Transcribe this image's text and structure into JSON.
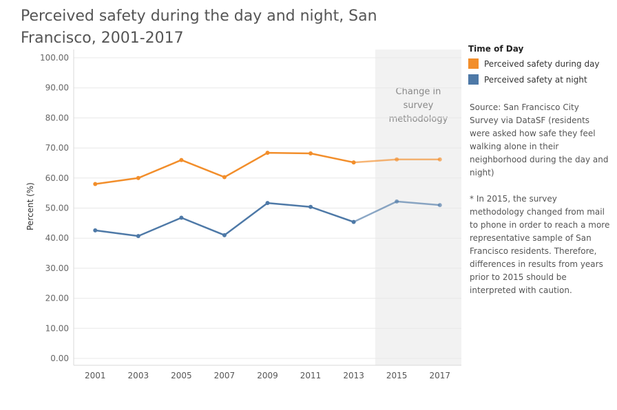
{
  "title": "Perceived safety during the day and night, San Francisco, 2001-2017",
  "legend": {
    "title": "Time of Day",
    "items": [
      {
        "label": "Perceived safety during day",
        "color": "#f28e2b"
      },
      {
        "label": "Perceived safety at night",
        "color": "#4e79a7"
      }
    ]
  },
  "notes": {
    "source": "Source: San Francisco City Survey via DataSF (residents were asked how safe they feel walking alone in their neighborhood during the day and night)",
    "footnote": "* In 2015, the survey methodology changed from mail to phone in order to reach a more representative sample of San Francisco residents. Therefore, differences in results from years prior to 2015 should be interpreted with caution."
  },
  "chart_data": {
    "type": "line",
    "title": "Perceived safety during the day and night, San Francisco, 2001-2017",
    "xlabel": "",
    "ylabel": "Percent (%)",
    "categories": [
      "2001",
      "2003",
      "2005",
      "2007",
      "2009",
      "2011",
      "2013",
      "2015",
      "2017"
    ],
    "series": [
      {
        "name": "Perceived safety during day",
        "color": "#f28e2b",
        "values": [
          58.0,
          60.0,
          66.0,
          60.3,
          68.4,
          68.2,
          65.2,
          66.2,
          66.2
        ]
      },
      {
        "name": "Perceived safety at night",
        "color": "#4e79a7",
        "values": [
          42.6,
          40.7,
          46.8,
          41.0,
          51.7,
          50.4,
          45.4,
          52.2,
          51.0
        ]
      }
    ],
    "ylim": [
      0,
      100
    ],
    "yticks": [
      "0.00",
      "10.00",
      "20.00",
      "30.00",
      "40.00",
      "50.00",
      "60.00",
      "70.00",
      "80.00",
      "90.00",
      "100.00"
    ],
    "grid": true,
    "legend_position": "right",
    "shaded_region": {
      "label": "Change in survey methodology",
      "from_year": "2014",
      "to_year": "2018"
    }
  }
}
